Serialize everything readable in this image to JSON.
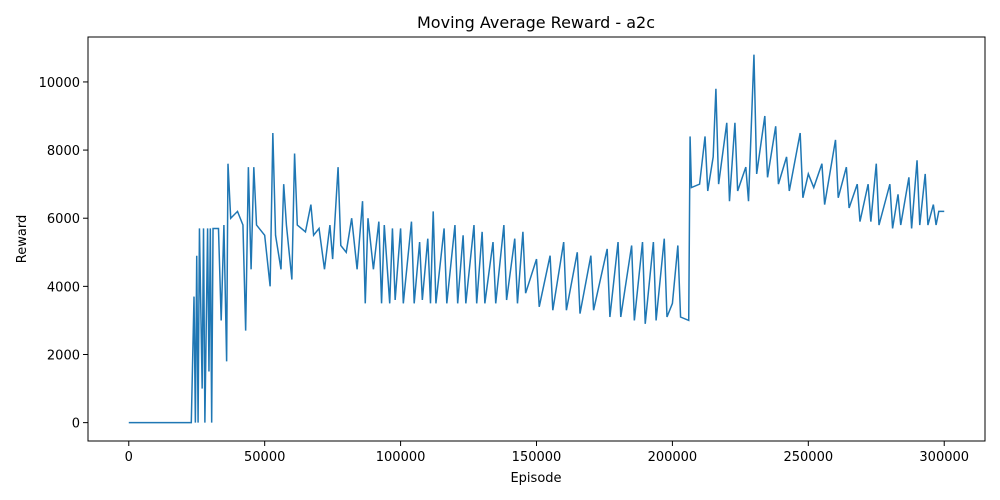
{
  "chart_data": {
    "type": "line",
    "title": "Moving Average Reward - a2c",
    "x_label": "Episode",
    "y_label": "Reward",
    "x": [
      0,
      23000,
      24000,
      24500,
      25000,
      25500,
      26000,
      27000,
      27500,
      28000,
      29000,
      29500,
      30000,
      30500,
      31000,
      33000,
      34000,
      35000,
      36000,
      36500,
      37500,
      40000,
      42000,
      43000,
      44000,
      45000,
      46000,
      47000,
      50000,
      52000,
      53000,
      54000,
      56000,
      57000,
      58000,
      60000,
      61000,
      62000,
      65000,
      67000,
      68000,
      70000,
      72000,
      74000,
      75000,
      77000,
      78000,
      80000,
      82000,
      84000,
      86000,
      87000,
      88000,
      90000,
      92000,
      93000,
      94000,
      96000,
      97000,
      98000,
      100000,
      101000,
      104000,
      105000,
      107000,
      108000,
      110000,
      111000,
      112000,
      113000,
      116000,
      117000,
      120000,
      121000,
      123000,
      124000,
      127000,
      128000,
      130000,
      131000,
      134000,
      135000,
      138000,
      139000,
      142000,
      143000,
      145000,
      146000,
      150000,
      151000,
      155000,
      156000,
      160000,
      161000,
      165000,
      166000,
      170000,
      171000,
      176000,
      177000,
      180000,
      181000,
      185000,
      186000,
      189000,
      190000,
      193000,
      194000,
      197000,
      198000,
      200000,
      202000,
      203000,
      206000,
      206500,
      207000,
      210000,
      212000,
      213000,
      215000,
      216000,
      217000,
      220000,
      221000,
      223000,
      224000,
      227000,
      228000,
      230000,
      231000,
      234000,
      235000,
      238000,
      239000,
      242000,
      243000,
      247000,
      248000,
      250000,
      252000,
      255000,
      256000,
      260000,
      261000,
      264000,
      265000,
      268000,
      269000,
      272000,
      273000,
      275000,
      276000,
      280000,
      281000,
      283000,
      284000,
      287000,
      288000,
      290000,
      291000,
      293000,
      294000,
      296000,
      297000,
      298000,
      300000
    ],
    "series": [
      {
        "name": "a2c",
        "color": "#1f77b4",
        "values": [
          0,
          0,
          3700,
          0,
          4900,
          0,
          5700,
          1000,
          5700,
          0,
          5700,
          1500,
          5700,
          0,
          5700,
          5700,
          3000,
          5800,
          1800,
          7600,
          6000,
          6200,
          5800,
          2700,
          7500,
          4500,
          7500,
          5800,
          5500,
          4000,
          8500,
          5500,
          4500,
          7000,
          5800,
          4200,
          7900,
          5800,
          5600,
          6400,
          5500,
          5700,
          4500,
          5800,
          4800,
          7500,
          5200,
          5000,
          6000,
          4500,
          6500,
          3500,
          6000,
          4500,
          5900,
          3500,
          5800,
          3500,
          5700,
          3600,
          5700,
          3500,
          5900,
          3500,
          5300,
          3600,
          5400,
          3500,
          6200,
          3500,
          5700,
          3500,
          5800,
          3500,
          5500,
          3500,
          5800,
          3500,
          5600,
          3500,
          5300,
          3500,
          5800,
          3600,
          5400,
          3500,
          5600,
          3800,
          4800,
          3400,
          4900,
          3300,
          5300,
          3300,
          5000,
          3200,
          4900,
          3300,
          5100,
          3100,
          5300,
          3100,
          5200,
          3000,
          5300,
          2900,
          5300,
          3000,
          5400,
          3100,
          3500,
          5200,
          3100,
          3000,
          8400,
          6900,
          7000,
          8400,
          6800,
          7800,
          9800,
          7000,
          8800,
          6500,
          8800,
          6800,
          7500,
          6500,
          10800,
          7300,
          9000,
          7200,
          8700,
          7000,
          7800,
          6800,
          8500,
          6600,
          7300,
          6900,
          7600,
          6400,
          8300,
          6600,
          7500,
          6300,
          7000,
          5900,
          7000,
          5900,
          7600,
          5800,
          7000,
          5700,
          6700,
          5800,
          7200,
          5700,
          7700,
          5800,
          7300,
          5800,
          6400,
          5800,
          6200,
          6200
        ]
      }
    ],
    "xlim": [
      -15000,
      315000
    ],
    "ylim": [
      -539,
      11319
    ],
    "xticks": [
      0,
      50000,
      100000,
      150000,
      200000,
      250000,
      300000
    ],
    "yticks": [
      0,
      2000,
      4000,
      6000,
      8000,
      10000
    ]
  }
}
